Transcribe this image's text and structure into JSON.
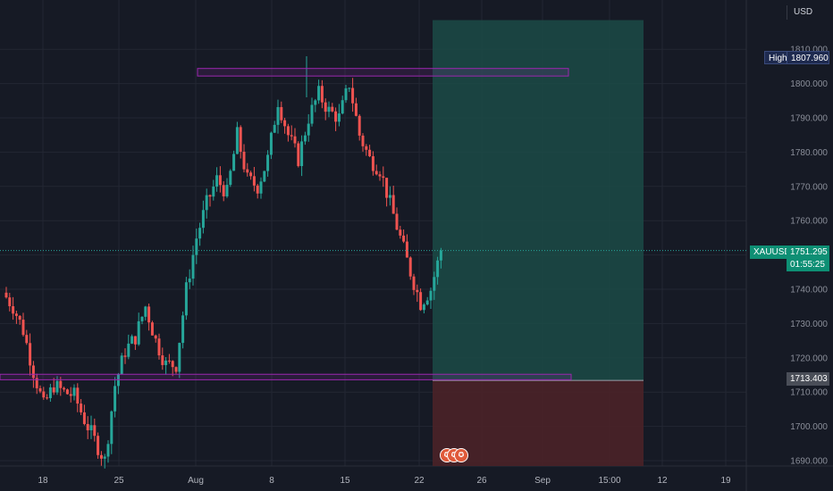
{
  "header": {
    "currency": "USD"
  },
  "labels": {
    "high_name": "High",
    "high_value": "1807.960",
    "symbol": "XAUUSD",
    "last_price": "1751.295",
    "countdown": "01:55:25",
    "level_price": "1713.403"
  },
  "events": {
    "icon": "us-flag-icon",
    "count": 3
  },
  "colors": {
    "background": "#161a25",
    "up": "#26a69a",
    "down": "#ef5350",
    "zone_border": "#9c27b0",
    "target_zone": "#1b4b47",
    "stop_zone": "#4a2228"
  },
  "chart_data": {
    "type": "candlestick",
    "symbol": "XAUUSD",
    "currency": "USD",
    "y_axis": {
      "ticks": [
        "1690.000",
        "1700.000",
        "1710.000",
        "1720.000",
        "1730.000",
        "1740.000",
        "1750.000",
        "1760.000",
        "1770.000",
        "1780.000",
        "1790.000",
        "1800.000",
        "1810.000"
      ],
      "ylim": [
        1688,
        1820
      ]
    },
    "x_axis": {
      "ticks": [
        "18",
        "25",
        "Aug",
        "8",
        "15",
        "22",
        "26",
        "Sep",
        "15:00",
        "12",
        "19"
      ]
    },
    "high": 1807.96,
    "last": 1751.295,
    "position": {
      "entry": 1713.403,
      "target": 1818.5,
      "stop": 1689
    },
    "resistance_zone": [
      1802.2,
      1804.4
    ],
    "support_zone": [
      1713.6,
      1715.2
    ],
    "daily_closes": [
      {
        "date": "Jul 13",
        "close": 1735
      },
      {
        "date": "Jul 14",
        "close": 1728
      },
      {
        "date": "Jul 15",
        "close": 1716
      },
      {
        "date": "Jul 16",
        "close": 1706
      },
      {
        "date": "Jul 17",
        "close": 1712
      },
      {
        "date": "Jul 18",
        "close": 1710
      },
      {
        "date": "Jul 19",
        "close": 1709
      },
      {
        "date": "Jul 20",
        "close": 1702
      },
      {
        "date": "Jul 21",
        "close": 1696
      },
      {
        "date": "Jul 22",
        "close": 1690
      },
      {
        "date": "Jul 23",
        "close": 1712
      },
      {
        "date": "Jul 24",
        "close": 1722
      },
      {
        "date": "Jul 25",
        "close": 1726
      },
      {
        "date": "Jul 26",
        "close": 1735
      },
      {
        "date": "Jul 27",
        "close": 1725
      },
      {
        "date": "Jul 28",
        "close": 1718
      },
      {
        "date": "Jul 29",
        "close": 1718
      },
      {
        "date": "Jul 30",
        "close": 1740
      },
      {
        "date": "Jul 31",
        "close": 1755
      },
      {
        "date": "Aug 1",
        "close": 1765
      },
      {
        "date": "Aug 2",
        "close": 1772
      },
      {
        "date": "Aug 3",
        "close": 1768
      },
      {
        "date": "Aug 4",
        "close": 1785
      },
      {
        "date": "Aug 5",
        "close": 1772
      },
      {
        "date": "Aug 6",
        "close": 1770
      },
      {
        "date": "Aug 7",
        "close": 1778
      },
      {
        "date": "Aug 8",
        "close": 1795
      },
      {
        "date": "Aug 9",
        "close": 1785
      },
      {
        "date": "Aug 10",
        "close": 1778
      },
      {
        "date": "Aug 11",
        "close": 1790
      },
      {
        "date": "Aug 12",
        "close": 1797
      },
      {
        "date": "Aug 13",
        "close": 1792
      },
      {
        "date": "Aug 14",
        "close": 1790
      },
      {
        "date": "Aug 15",
        "close": 1800
      },
      {
        "date": "Aug 16",
        "close": 1785
      },
      {
        "date": "Aug 17",
        "close": 1778
      },
      {
        "date": "Aug 18",
        "close": 1775
      },
      {
        "date": "Aug 19",
        "close": 1765
      },
      {
        "date": "Aug 20",
        "close": 1755
      },
      {
        "date": "Aug 21",
        "close": 1745
      },
      {
        "date": "Aug 22",
        "close": 1736
      },
      {
        "date": "Aug 23",
        "close": 1740
      },
      {
        "date": "Aug 24",
        "close": 1751.3
      }
    ]
  }
}
